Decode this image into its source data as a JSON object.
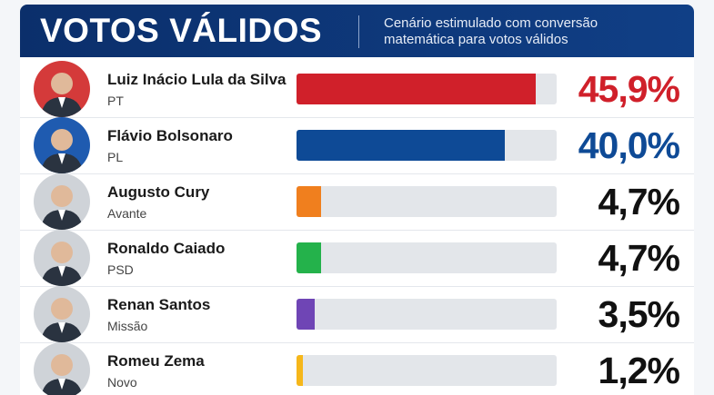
{
  "chart_data": {
    "type": "bar",
    "title": "VOTOS VÁLIDOS",
    "subtitle": "Cenário estimulado com conversão matemática para votos válidos",
    "categories": [
      "Luiz Inácio Lula da Silva",
      "Flávio Bolsonaro",
      "Augusto Cury",
      "Ronaldo Caiado",
      "Renan Santos",
      "Romeu Zema"
    ],
    "parties": [
      "PT",
      "PL",
      "Avante",
      "PSD",
      "Missão",
      "Novo"
    ],
    "values": [
      45.9,
      40.0,
      4.7,
      4.7,
      3.5,
      1.2
    ],
    "value_labels": [
      "45,9%",
      "40,0%",
      "4,7%",
      "4,7%",
      "3,5%",
      "1,2%"
    ],
    "colors": [
      "#d0202a",
      "#0e4a96",
      "#f07f1e",
      "#24b24b",
      "#6f45b5",
      "#f6b71a"
    ],
    "label_colors": [
      "#d0202a",
      "#0e4a96",
      "#111111",
      "#111111",
      "#111111",
      "#111111"
    ],
    "xlim": [
      0,
      50
    ]
  }
}
